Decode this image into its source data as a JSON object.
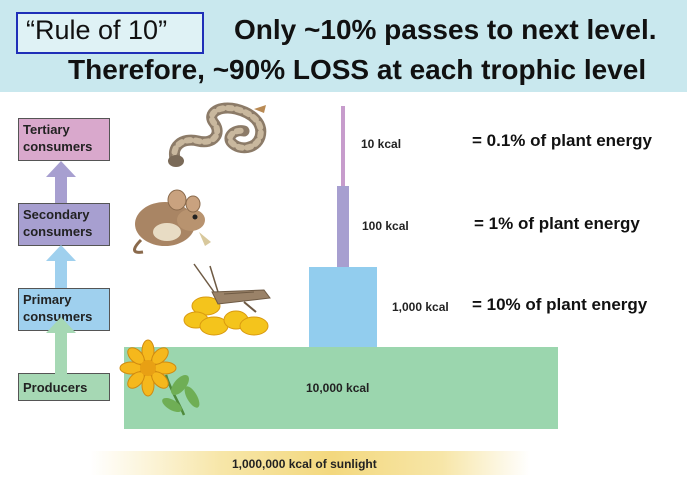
{
  "header": {
    "rule_label": "“Rule of 10”",
    "line1": "Only ~10% passes to next level.",
    "line2": "Therefore, ~90% LOSS at each trophic level"
  },
  "levels": [
    {
      "label": "Tertiary consumers",
      "color": "#d9a8cc"
    },
    {
      "label": "Secondary consumers",
      "color": "#a79fd0"
    },
    {
      "label": "Primary consumers",
      "color": "#9fd0ee"
    },
    {
      "label": "Producers",
      "color": "#a6d8b4"
    }
  ],
  "energy": [
    {
      "kcal": "10 kcal",
      "percent": "= 0.1% of plant energy",
      "color": "#c79ccc"
    },
    {
      "kcal": "100 kcal",
      "percent": "= 1% of plant energy",
      "color": "#a79fd0"
    },
    {
      "kcal": "1,000 kcal",
      "percent": "= 10% of plant energy",
      "color": "#92cdee"
    },
    {
      "kcal": "10,000 kcal",
      "percent": "",
      "color": "#9bd6ae"
    }
  ],
  "sunlight": "1,000,000 kcal of sunlight"
}
